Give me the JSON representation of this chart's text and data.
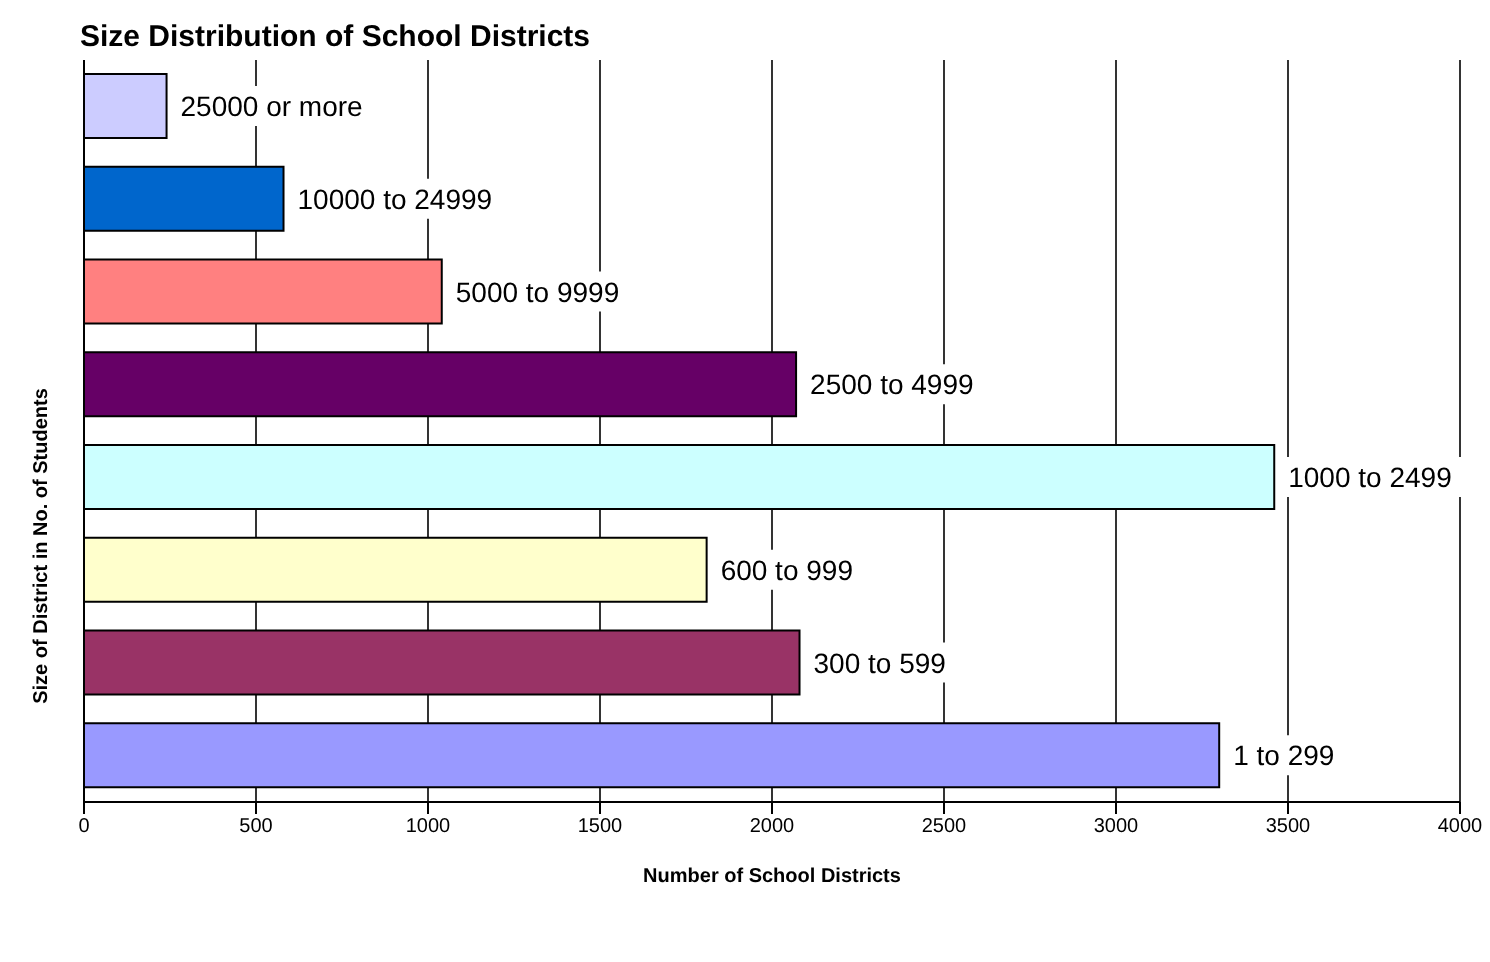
{
  "chart_data": {
    "type": "bar",
    "orientation": "horizontal",
    "title": "Size Distribution of School Districts",
    "xlabel": "Number of School Districts",
    "ylabel": "Size of District in No. of Students",
    "categories": [
      "25000 or more",
      "10000 to 24999",
      "5000 to 9999",
      "2500 to 4999",
      "1000 to 2499",
      "600 to 999",
      "300 to 599",
      "1 to 299"
    ],
    "values": [
      240,
      580,
      1040,
      2070,
      3460,
      1810,
      2080,
      3300
    ],
    "colors": [
      "#ccccff",
      "#0066cc",
      "#ff8080",
      "#660066",
      "#ccffff",
      "#ffffcc",
      "#993366",
      "#9999ff"
    ],
    "xlim": [
      0,
      4000
    ],
    "xticks": [
      0,
      500,
      1000,
      1500,
      2000,
      2500,
      3000,
      3500,
      4000
    ],
    "grid": "x",
    "legend": false
  }
}
